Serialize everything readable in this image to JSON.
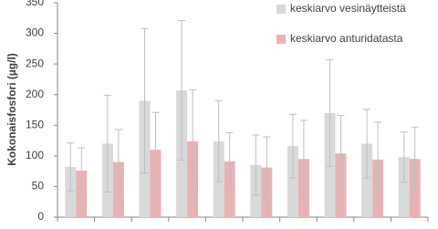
{
  "chart_data": {
    "type": "bar",
    "y_label": "Kokonaisfosfori (µg/l)",
    "categories": [
      null,
      null,
      null,
      null,
      null,
      null,
      null,
      null,
      null,
      null
    ],
    "series": [
      {
        "name": "keskiarvo vesinäytteistä",
        "color": "#d9d9d9",
        "values": [
          82,
          120,
          190,
          207,
          124,
          85,
          116,
          170,
          120,
          98
        ],
        "errors": [
          39,
          79,
          118,
          114,
          66,
          49,
          52,
          87,
          56,
          41
        ]
      },
      {
        "name": "keskiarvo anturidatasta",
        "color": "#e6b3b5",
        "values": [
          76,
          90,
          110,
          124,
          91,
          81,
          95,
          104,
          94,
          95
        ],
        "errors": [
          37,
          53,
          61,
          84,
          47,
          50,
          63,
          62,
          61,
          52
        ]
      }
    ],
    "error_color": "#bfbfbf",
    "ylim": [
      0,
      350
    ],
    "yticks": [
      0,
      50,
      100,
      150,
      200,
      250,
      300,
      350
    ],
    "legend": "top-right"
  }
}
